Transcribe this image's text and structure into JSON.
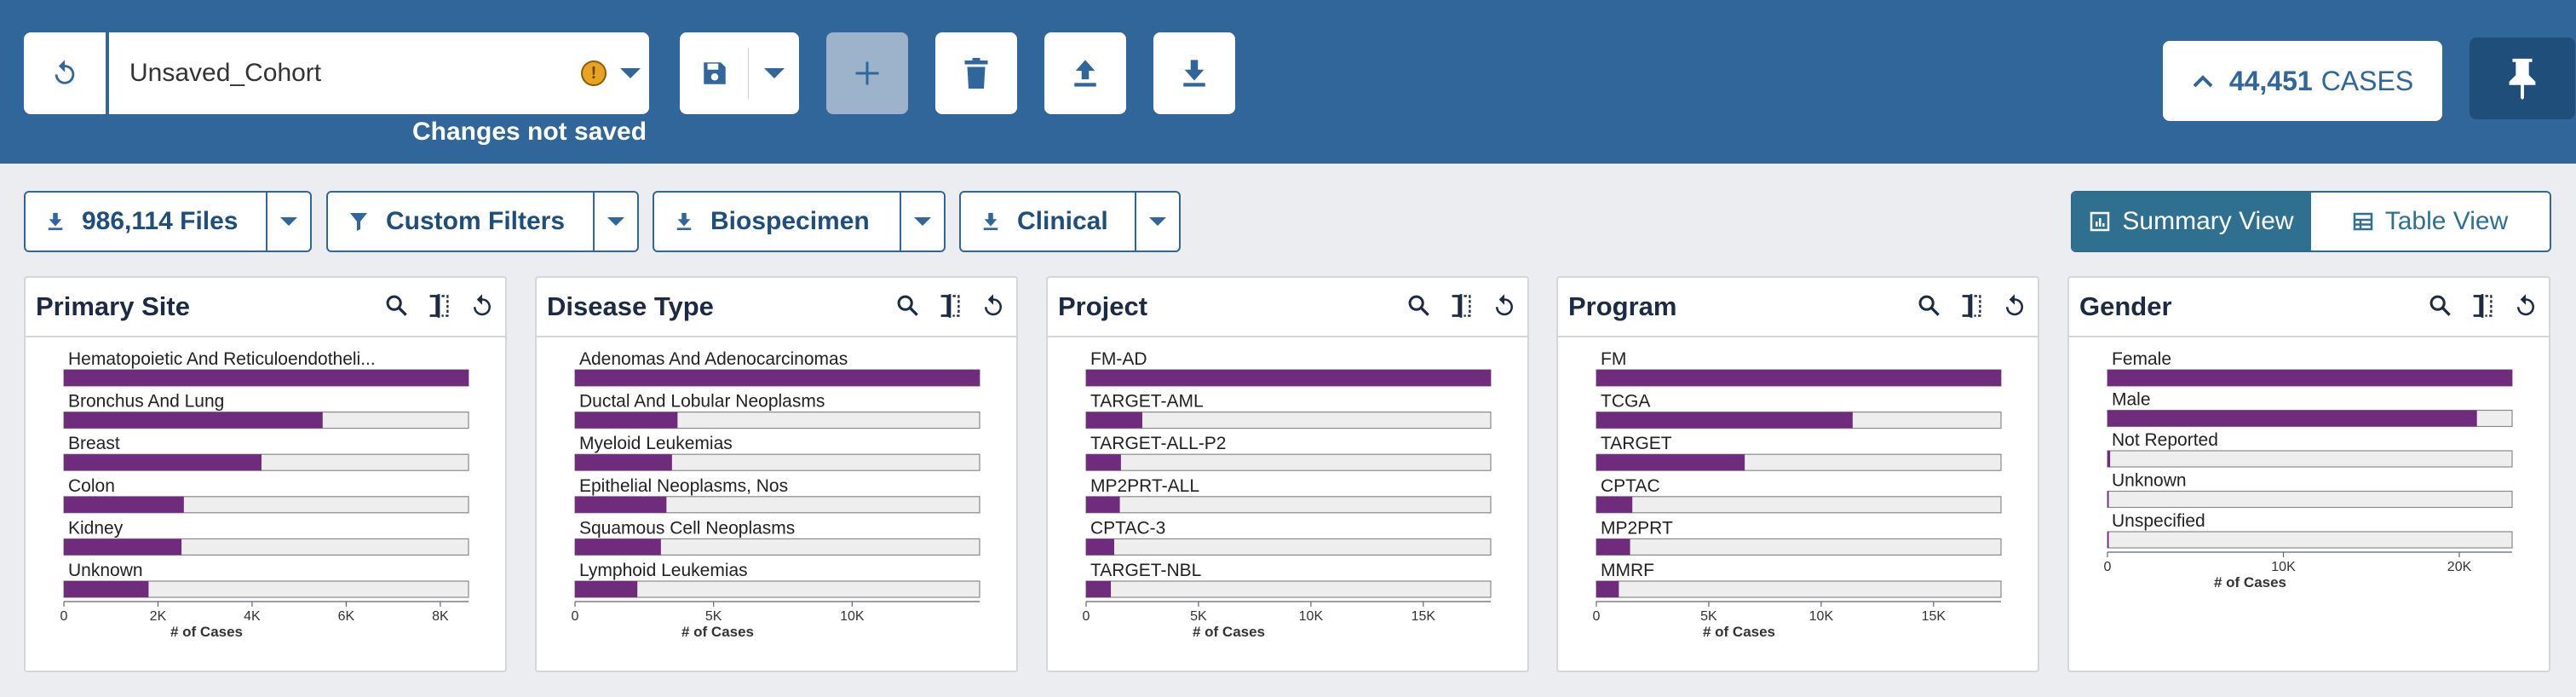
{
  "toolbar": {
    "cohort_name": "Unsaved_Cohort",
    "status_text": "Changes not saved",
    "case_count": "44,451",
    "case_label": "CASES"
  },
  "filters": {
    "files_label": "986,114 Files",
    "custom_label": "Custom Filters",
    "biospecimen_label": "Biospecimen",
    "clinical_label": "Clinical"
  },
  "views": {
    "summary_label": "Summary View",
    "table_label": "Table View"
  },
  "colors": {
    "header": "#31669b",
    "bar": "#6f2c7c",
    "track": "#eeeeee"
  },
  "icons": [
    "undo-icon",
    "warning-icon",
    "caret-down-icon",
    "save-icon",
    "plus-icon",
    "trash-icon",
    "upload-icon",
    "download-icon",
    "chevron-up-icon",
    "pin-icon",
    "filter-icon",
    "chart-icon",
    "table-icon",
    "search-icon",
    "compare-icon"
  ],
  "chart_data": [
    {
      "type": "bar",
      "title": "Primary Site",
      "categories": [
        "Hematopoietic And Reticuloendotheli...",
        "Bronchus And Lung",
        "Breast",
        "Colon",
        "Kidney",
        "Unknown"
      ],
      "values": [
        8600,
        5500,
        4200,
        2550,
        2500,
        1800
      ],
      "xmax": 8600,
      "ticks": [
        0,
        2000,
        4000,
        6000,
        8000
      ],
      "tick_labels": [
        "0",
        "2K",
        "4K",
        "6K",
        "8K"
      ],
      "xlabel": "# of Cases"
    },
    {
      "type": "bar",
      "title": "Disease Type",
      "categories": [
        "Adenomas And Adenocarcinomas",
        "Ductal And Lobular Neoplasms",
        "Myeloid Leukemias",
        "Epithelial Neoplasms, Nos",
        "Squamous Cell Neoplasms",
        "Lymphoid Leukemias"
      ],
      "values": [
        14600,
        3700,
        3500,
        3300,
        3100,
        2250
      ],
      "xmax": 14600,
      "ticks": [
        0,
        5000,
        10000
      ],
      "tick_labels": [
        "0",
        "5K",
        "10K"
      ],
      "xlabel": "# of Cases"
    },
    {
      "type": "bar",
      "title": "Project",
      "categories": [
        "FM-AD",
        "TARGET-AML",
        "TARGET-ALL-P2",
        "MP2PRT-ALL",
        "CPTAC-3",
        "TARGET-NBL"
      ],
      "values": [
        18000,
        2500,
        1550,
        1500,
        1250,
        1100
      ],
      "xmax": 18000,
      "ticks": [
        0,
        5000,
        10000,
        15000
      ],
      "tick_labels": [
        "0",
        "5K",
        "10K",
        "15K"
      ],
      "xlabel": "# of Cases"
    },
    {
      "type": "bar",
      "title": "Program",
      "categories": [
        "FM",
        "TCGA",
        "TARGET",
        "CPTAC",
        "MP2PRT",
        "MMRF"
      ],
      "values": [
        18000,
        11400,
        6600,
        1600,
        1500,
        1000
      ],
      "xmax": 18000,
      "ticks": [
        0,
        5000,
        10000,
        15000
      ],
      "tick_labels": [
        "0",
        "5K",
        "10K",
        "15K"
      ],
      "xlabel": "# of Cases"
    },
    {
      "type": "bar",
      "title": "Gender",
      "categories": [
        "Female",
        "Male",
        "Not Reported",
        "Unknown",
        "Unspecified"
      ],
      "values": [
        23000,
        21000,
        150,
        20,
        10
      ],
      "xmax": 23000,
      "ticks": [
        0,
        10000,
        20000
      ],
      "tick_labels": [
        "0",
        "10K",
        "20K"
      ],
      "xlabel": "# of Cases"
    }
  ]
}
